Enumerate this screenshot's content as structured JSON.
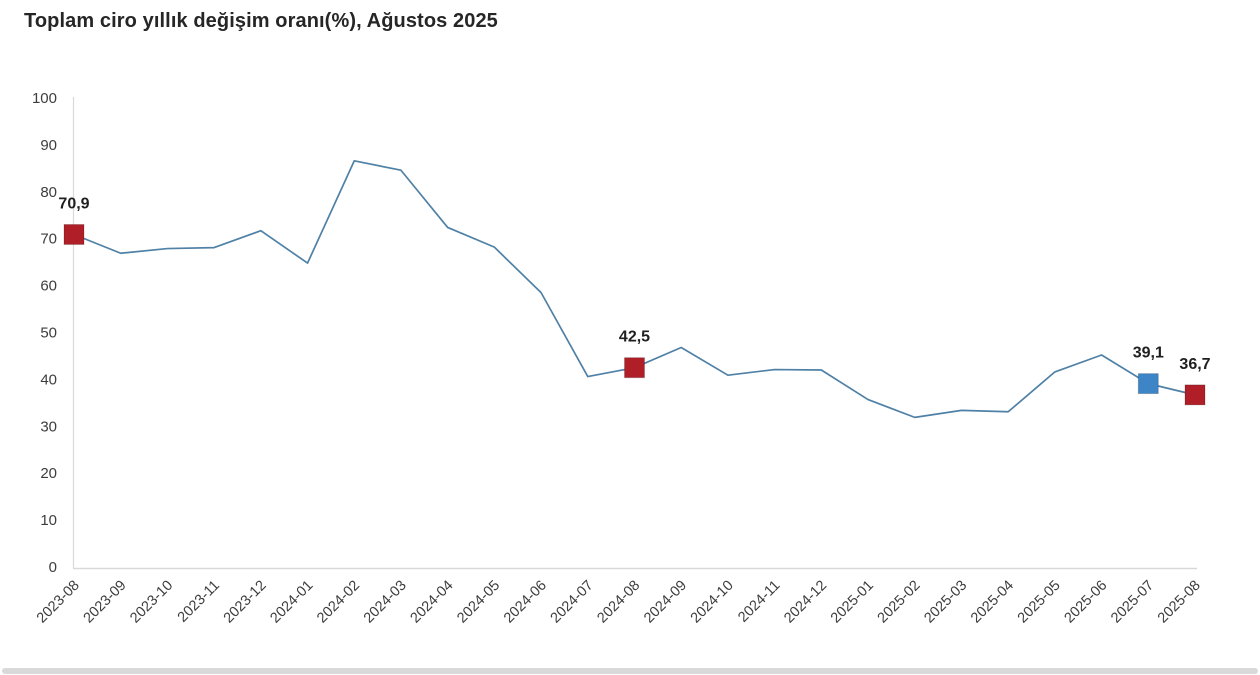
{
  "chart_data": {
    "type": "line",
    "title": "Toplam ciro yıllık değişim oranı(%), Ağustos 2025",
    "categories": [
      "2023-08",
      "2023-09",
      "2023-10",
      "2023-11",
      "2023-12",
      "2024-01",
      "2024-02",
      "2024-03",
      "2024-04",
      "2024-05",
      "2024-06",
      "2024-07",
      "2024-08",
      "2024-09",
      "2024-10",
      "2024-11",
      "2024-12",
      "2025-01",
      "2025-02",
      "2025-03",
      "2025-04",
      "2025-05",
      "2025-06",
      "2025-07",
      "2025-08"
    ],
    "values": [
      70.9,
      66.9,
      67.9,
      68.1,
      71.7,
      64.8,
      86.6,
      84.6,
      72.4,
      68.2,
      58.5,
      40.6,
      42.5,
      46.8,
      40.9,
      42.1,
      42.0,
      35.7,
      31.9,
      33.4,
      33.1,
      41.6,
      45.2,
      39.1,
      36.7
    ],
    "xlabel": "",
    "ylabel": "",
    "ylim": [
      0,
      100
    ],
    "yticks": [
      0,
      10,
      20,
      30,
      40,
      50,
      60,
      70,
      80,
      90,
      100
    ],
    "grid": false,
    "legend": "none",
    "decimal_separator": ",",
    "annotations": [
      {
        "x": "2023-08",
        "value": 70.9,
        "label": "70,9",
        "color": "#B01F28"
      },
      {
        "x": "2024-08",
        "value": 42.5,
        "label": "42,5",
        "color": "#B01F28"
      },
      {
        "x": "2025-07",
        "value": 39.1,
        "label": "39,1",
        "color": "#3D85C6"
      },
      {
        "x": "2025-08",
        "value": 36.7,
        "label": "36,7",
        "color": "#B01F28"
      }
    ],
    "colors": {
      "line": "#4F81A6",
      "marker_highlight": "#B01F28",
      "marker_previous": "#3D85C6",
      "axis": "#D9D9D9",
      "tick_text": "#3d3d3d",
      "title_text": "#262626"
    }
  }
}
